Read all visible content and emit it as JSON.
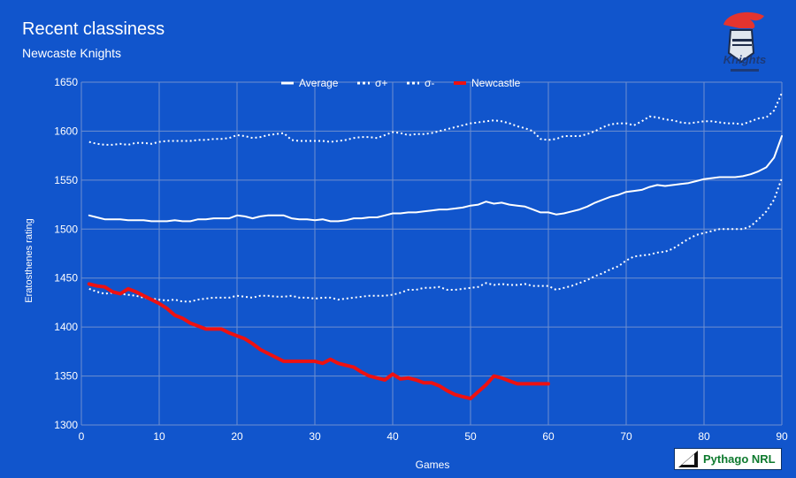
{
  "header": {
    "title": "Recent classiness",
    "subtitle": "Newcaste Knights"
  },
  "colors": {
    "background": "#1155cc",
    "grid": "#6f8fcf",
    "text": "#ffffff",
    "newcastle": "#ee1111"
  },
  "logos": {
    "top_right_icon": "knights-logo-icon",
    "top_right_text": "Knights",
    "badge_icon": "pythago-logo-icon",
    "badge_text": "Pythago NRL"
  },
  "chart_data": {
    "type": "line",
    "title": "Recent classiness",
    "subtitle": "Newcaste Knights",
    "xlabel": "Games",
    "ylabel": "Eratosthenes rating",
    "xlim": [
      0,
      90
    ],
    "ylim": [
      1300,
      1650
    ],
    "xticks": [
      0,
      10,
      20,
      30,
      40,
      50,
      60,
      70,
      80,
      90
    ],
    "yticks": [
      1300,
      1350,
      1400,
      1450,
      1500,
      1550,
      1600,
      1650
    ],
    "grid": true,
    "legend_position": "top",
    "series": [
      {
        "name": "Average",
        "style": "solid",
        "color": "#ffffff",
        "x": [
          1,
          2,
          3,
          4,
          5,
          6,
          7,
          8,
          9,
          10,
          11,
          12,
          13,
          14,
          15,
          16,
          17,
          18,
          19,
          20,
          21,
          22,
          23,
          24,
          25,
          26,
          27,
          28,
          29,
          30,
          31,
          32,
          33,
          34,
          35,
          36,
          37,
          38,
          39,
          40,
          41,
          42,
          43,
          44,
          45,
          46,
          47,
          48,
          49,
          50,
          51,
          52,
          53,
          54,
          55,
          56,
          57,
          58,
          59,
          60,
          61,
          62,
          63,
          64,
          65,
          66,
          67,
          68,
          69,
          70,
          71,
          72,
          73,
          74,
          75,
          76,
          77,
          78,
          79,
          80,
          81,
          82,
          83,
          84,
          85,
          86,
          87,
          88,
          89,
          90
        ],
        "values": [
          1514,
          1512,
          1510,
          1510,
          1510,
          1509,
          1509,
          1509,
          1508,
          1508,
          1508,
          1509,
          1508,
          1508,
          1510,
          1510,
          1511,
          1511,
          1511,
          1514,
          1513,
          1511,
          1513,
          1514,
          1514,
          1514,
          1511,
          1510,
          1510,
          1509,
          1510,
          1508,
          1508,
          1509,
          1511,
          1511,
          1512,
          1512,
          1514,
          1516,
          1516,
          1517,
          1517,
          1518,
          1519,
          1520,
          1520,
          1521,
          1522,
          1524,
          1525,
          1528,
          1526,
          1527,
          1525,
          1524,
          1523,
          1520,
          1517,
          1517,
          1515,
          1516,
          1518,
          1520,
          1523,
          1527,
          1530,
          1533,
          1535,
          1538,
          1539,
          1540,
          1543,
          1545,
          1544,
          1545,
          1546,
          1547,
          1549,
          1551,
          1552,
          1553,
          1553,
          1553,
          1554,
          1556,
          1559,
          1563,
          1573,
          1595
        ]
      },
      {
        "name": "σ+",
        "style": "dotted",
        "color": "#ffffff",
        "x": [
          1,
          2,
          3,
          4,
          5,
          6,
          7,
          8,
          9,
          10,
          11,
          12,
          13,
          14,
          15,
          16,
          17,
          18,
          19,
          20,
          21,
          22,
          23,
          24,
          25,
          26,
          27,
          28,
          29,
          30,
          31,
          32,
          33,
          34,
          35,
          36,
          37,
          38,
          39,
          40,
          41,
          42,
          43,
          44,
          45,
          46,
          47,
          48,
          49,
          50,
          51,
          52,
          53,
          54,
          55,
          56,
          57,
          58,
          59,
          60,
          61,
          62,
          63,
          64,
          65,
          66,
          67,
          68,
          69,
          70,
          71,
          72,
          73,
          74,
          75,
          76,
          77,
          78,
          79,
          80,
          81,
          82,
          83,
          84,
          85,
          86,
          87,
          88,
          89,
          90
        ],
        "values": [
          1589,
          1587,
          1586,
          1586,
          1587,
          1586,
          1588,
          1588,
          1587,
          1589,
          1590,
          1590,
          1590,
          1590,
          1591,
          1591,
          1592,
          1592,
          1593,
          1596,
          1595,
          1593,
          1594,
          1596,
          1597,
          1598,
          1591,
          1590,
          1590,
          1590,
          1590,
          1589,
          1590,
          1591,
          1593,
          1594,
          1594,
          1593,
          1596,
          1599,
          1598,
          1596,
          1597,
          1597,
          1598,
          1600,
          1602,
          1604,
          1606,
          1608,
          1609,
          1610,
          1611,
          1610,
          1608,
          1605,
          1603,
          1600,
          1592,
          1591,
          1592,
          1595,
          1595,
          1595,
          1597,
          1600,
          1604,
          1607,
          1608,
          1608,
          1606,
          1610,
          1615,
          1614,
          1612,
          1611,
          1609,
          1608,
          1609,
          1610,
          1610,
          1609,
          1608,
          1608,
          1607,
          1610,
          1613,
          1614,
          1621,
          1639
        ]
      },
      {
        "name": "σ-",
        "style": "dotted",
        "color": "#ffffff",
        "x": [
          1,
          2,
          3,
          4,
          5,
          6,
          7,
          8,
          9,
          10,
          11,
          12,
          13,
          14,
          15,
          16,
          17,
          18,
          19,
          20,
          21,
          22,
          23,
          24,
          25,
          26,
          27,
          28,
          29,
          30,
          31,
          32,
          33,
          34,
          35,
          36,
          37,
          38,
          39,
          40,
          41,
          42,
          43,
          44,
          45,
          46,
          47,
          48,
          49,
          50,
          51,
          52,
          53,
          54,
          55,
          56,
          57,
          58,
          59,
          60,
          61,
          62,
          63,
          64,
          65,
          66,
          67,
          68,
          69,
          70,
          71,
          72,
          73,
          74,
          75,
          76,
          77,
          78,
          79,
          80,
          81,
          82,
          83,
          84,
          85,
          86,
          87,
          88,
          89,
          90
        ],
        "values": [
          1439,
          1436,
          1434,
          1435,
          1434,
          1433,
          1432,
          1430,
          1429,
          1428,
          1427,
          1428,
          1426,
          1426,
          1428,
          1429,
          1430,
          1430,
          1430,
          1432,
          1431,
          1430,
          1432,
          1432,
          1431,
          1431,
          1432,
          1430,
          1430,
          1429,
          1430,
          1430,
          1428,
          1429,
          1430,
          1431,
          1432,
          1432,
          1432,
          1433,
          1435,
          1438,
          1438,
          1440,
          1440,
          1441,
          1438,
          1438,
          1439,
          1440,
          1441,
          1445,
          1443,
          1444,
          1443,
          1443,
          1444,
          1442,
          1442,
          1442,
          1438,
          1440,
          1442,
          1445,
          1448,
          1452,
          1455,
          1459,
          1462,
          1468,
          1472,
          1473,
          1474,
          1476,
          1477,
          1480,
          1485,
          1490,
          1494,
          1496,
          1498,
          1500,
          1500,
          1500,
          1500,
          1503,
          1510,
          1518,
          1530,
          1552
        ]
      },
      {
        "name": "Newcastle",
        "style": "solid",
        "color": "#ee1111",
        "x": [
          1,
          2,
          3,
          4,
          5,
          6,
          7,
          8,
          9,
          10,
          11,
          12,
          13,
          14,
          15,
          16,
          17,
          18,
          19,
          20,
          21,
          22,
          23,
          24,
          25,
          26,
          27,
          28,
          29,
          30,
          31,
          32,
          33,
          34,
          35,
          36,
          37,
          38,
          39,
          40,
          41,
          42,
          43,
          44,
          45,
          46,
          47,
          48,
          49,
          50,
          51,
          52,
          53,
          54,
          55,
          56,
          57,
          58,
          59,
          60
        ],
        "values": [
          1444,
          1442,
          1441,
          1436,
          1434,
          1439,
          1436,
          1432,
          1428,
          1424,
          1419,
          1412,
          1409,
          1404,
          1401,
          1398,
          1398,
          1398,
          1394,
          1391,
          1388,
          1383,
          1377,
          1373,
          1369,
          1365,
          1365,
          1365,
          1365,
          1365,
          1363,
          1367,
          1363,
          1361,
          1359,
          1354,
          1350,
          1348,
          1346,
          1352,
          1347,
          1348,
          1346,
          1343,
          1343,
          1340,
          1335,
          1331,
          1329,
          1327,
          1334,
          1341,
          1350,
          1348,
          1345,
          1342,
          1342,
          1342,
          1342,
          1342
        ]
      }
    ]
  }
}
